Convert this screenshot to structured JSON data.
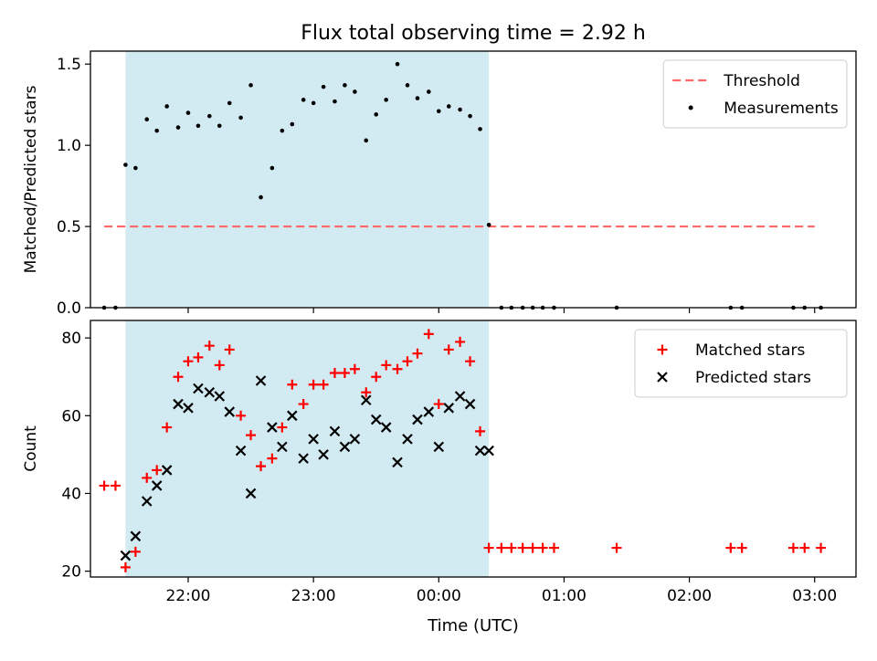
{
  "chart_data": {
    "title": "Flux total observing time = 2.92 h",
    "xlabel": "Time (UTC)",
    "x_unit": "hours of UTC clock time, values >= 24 are the next day",
    "x_range": [
      21.22,
      27.33
    ],
    "x_ticks": [
      {
        "value": 22,
        "label": "22:00"
      },
      {
        "value": 23,
        "label": "23:00"
      },
      {
        "value": 24,
        "label": "00:00"
      },
      {
        "value": 25,
        "label": "01:00"
      },
      {
        "value": 26,
        "label": "02:00"
      },
      {
        "value": 27,
        "label": "03:00"
      }
    ],
    "observing_window": {
      "x_start": 21.5,
      "x_end": 24.4,
      "color": "#add8e6"
    },
    "panels": [
      {
        "type": "scatter",
        "ylabel": "Matched/Predicted stars",
        "ylim": [
          0,
          1.58
        ],
        "yticks": [
          0.0,
          0.5,
          1.0,
          1.5
        ],
        "ytick_labels": [
          "0.0",
          "0.5",
          "1.0",
          "1.5"
        ],
        "legend_position": "top-right",
        "threshold": {
          "name": "Threshold",
          "y": 0.5,
          "x_start": 21.33,
          "x_end": 27.0,
          "color": "#ff6666",
          "style": "dashed"
        },
        "series": [
          {
            "name": "Measurements",
            "marker": "dot",
            "color": "#000000",
            "x": [
              21.33,
              21.42,
              21.5,
              21.58,
              21.67,
              21.75,
              21.83,
              21.92,
              22.0,
              22.08,
              22.17,
              22.25,
              22.33,
              22.42,
              22.5,
              22.58,
              22.67,
              22.75,
              22.83,
              22.92,
              23.0,
              23.08,
              23.17,
              23.25,
              23.33,
              23.42,
              23.5,
              23.58,
              23.67,
              23.75,
              23.83,
              23.92,
              24.0,
              24.08,
              24.17,
              24.25,
              24.33,
              24.4,
              24.5,
              24.58,
              24.67,
              24.75,
              24.83,
              24.92,
              25.42,
              26.33,
              26.42,
              26.83,
              26.92,
              27.05
            ],
            "y": [
              0,
              0,
              0.88,
              0.86,
              1.16,
              1.09,
              1.24,
              1.11,
              1.2,
              1.12,
              1.18,
              1.12,
              1.26,
              1.17,
              1.37,
              0.68,
              0.86,
              1.09,
              1.13,
              1.28,
              1.26,
              1.36,
              1.27,
              1.37,
              1.33,
              1.03,
              1.19,
              1.28,
              1.5,
              1.37,
              1.29,
              1.33,
              1.21,
              1.24,
              1.22,
              1.18,
              1.1,
              0.51,
              0,
              0,
              0,
              0,
              0,
              0,
              0,
              0,
              0,
              0,
              0,
              0
            ]
          }
        ]
      },
      {
        "type": "scatter",
        "ylabel": "Count",
        "ylim": [
          18.5,
          84.5
        ],
        "yticks": [
          20,
          40,
          60,
          80
        ],
        "ytick_labels": [
          "20",
          "40",
          "60",
          "80"
        ],
        "legend_position": "top-right",
        "series": [
          {
            "name": "Matched stars",
            "marker": "plus",
            "color": "#ff0000",
            "x": [
              21.33,
              21.42,
              21.5,
              21.58,
              21.67,
              21.75,
              21.83,
              21.92,
              22.0,
              22.08,
              22.17,
              22.25,
              22.33,
              22.42,
              22.5,
              22.58,
              22.67,
              22.75,
              22.83,
              22.92,
              23.0,
              23.08,
              23.17,
              23.25,
              23.33,
              23.42,
              23.5,
              23.58,
              23.67,
              23.75,
              23.83,
              23.92,
              24.0,
              24.08,
              24.17,
              24.25,
              24.33,
              24.4,
              24.5,
              24.58,
              24.67,
              24.75,
              24.83,
              24.92,
              25.42,
              26.33,
              26.42,
              26.83,
              26.92,
              27.05
            ],
            "y": [
              42,
              42,
              21,
              25,
              44,
              46,
              57,
              70,
              74,
              75,
              78,
              73,
              77,
              60,
              55,
              47,
              49,
              57,
              68,
              63,
              68,
              68,
              71,
              71,
              72,
              66,
              70,
              73,
              72,
              74,
              76,
              81,
              63,
              77,
              79,
              74,
              56,
              26,
              26,
              26,
              26,
              26,
              26,
              26,
              26,
              26,
              26,
              26,
              26,
              26
            ]
          },
          {
            "name": "Predicted stars",
            "marker": "x",
            "color": "#000000",
            "x": [
              21.5,
              21.58,
              21.67,
              21.75,
              21.83,
              21.92,
              22.0,
              22.08,
              22.17,
              22.25,
              22.33,
              22.42,
              22.5,
              22.58,
              22.67,
              22.75,
              22.83,
              22.92,
              23.0,
              23.08,
              23.17,
              23.25,
              23.33,
              23.42,
              23.5,
              23.58,
              23.67,
              23.75,
              23.83,
              23.92,
              24.0,
              24.08,
              24.17,
              24.25,
              24.33,
              24.4
            ],
            "y": [
              24,
              29,
              38,
              42,
              46,
              63,
              62,
              67,
              66,
              65,
              61,
              51,
              40,
              69,
              57,
              52,
              60,
              49,
              54,
              50,
              56,
              52,
              54,
              64,
              59,
              57,
              48,
              54,
              59,
              61,
              52,
              62,
              65,
              63,
              51,
              51
            ]
          }
        ]
      }
    ]
  }
}
